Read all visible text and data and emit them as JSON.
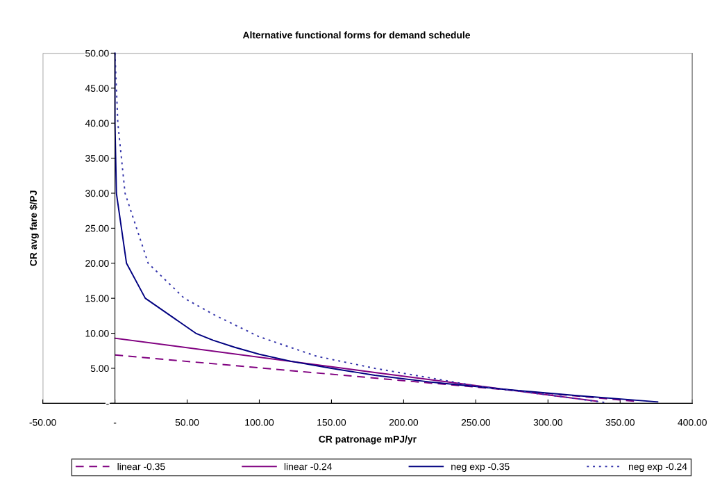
{
  "chart_data": {
    "type": "line",
    "title": "Alternative functional forms for demand schedule",
    "xlabel": "CR patronage mPJ/yr",
    "ylabel": "CR avg fare $/PJ",
    "xlim": [
      -50,
      400
    ],
    "xticks": [
      {
        "value": -50,
        "label": "-50.00"
      },
      {
        "value": 0,
        "label": "-"
      },
      {
        "value": 50,
        "label": "50.00"
      },
      {
        "value": 100,
        "label": "100.00"
      },
      {
        "value": 150,
        "label": "150.00"
      },
      {
        "value": 200,
        "label": "200.00"
      },
      {
        "value": 250,
        "label": "250.00"
      },
      {
        "value": 300,
        "label": "300.00"
      },
      {
        "value": 350,
        "label": "350.00"
      },
      {
        "value": 400,
        "label": "400.00"
      }
    ],
    "ylim": [
      0,
      50
    ],
    "yticks": [
      {
        "value": 0,
        "label": "-"
      },
      {
        "value": 5,
        "label": "5.00"
      },
      {
        "value": 10,
        "label": "10.00"
      },
      {
        "value": 15,
        "label": "15.00"
      },
      {
        "value": 20,
        "label": "20.00"
      },
      {
        "value": 25,
        "label": "25.00"
      },
      {
        "value": 30,
        "label": "30.00"
      },
      {
        "value": 35,
        "label": "35.00"
      },
      {
        "value": 40,
        "label": "40.00"
      },
      {
        "value": 45,
        "label": "45.00"
      },
      {
        "value": 50,
        "label": "50.00"
      }
    ],
    "grid": false,
    "legend": "bottom",
    "marker": "none",
    "series": [
      {
        "name": "linear -0.35",
        "color": "#800080",
        "line_style": "dashed",
        "x": [
          0,
          180,
          360
        ],
        "values": [
          6.9,
          3.6,
          0.3
        ]
      },
      {
        "name": "linear -0.24",
        "color": "#800080",
        "line_style": "solid",
        "x": [
          0,
          180,
          334
        ],
        "values": [
          9.3,
          4.4,
          0.3
        ]
      },
      {
        "name": "neg exp -0.35",
        "color": "#000080",
        "line_style": "solid",
        "x": [
          0,
          0,
          1,
          8,
          21,
          56,
          68,
          83,
          100,
          122,
          150,
          180,
          220,
          270,
          320,
          376
        ],
        "values": [
          50,
          40,
          30,
          20,
          15,
          10,
          9,
          8,
          7,
          6,
          5,
          4,
          3,
          2,
          1.1,
          0.2
        ]
      },
      {
        "name": "neg exp -0.24",
        "color": "#3333aa",
        "line_style": "dotted",
        "x": [
          0,
          2,
          7,
          15,
          23,
          48,
          70,
          100,
          140,
          180,
          250,
          300,
          340
        ],
        "values": [
          50,
          40,
          30,
          25,
          20,
          15,
          12.5,
          9.5,
          6.7,
          5,
          2.5,
          1.2,
          0.1
        ]
      }
    ]
  }
}
